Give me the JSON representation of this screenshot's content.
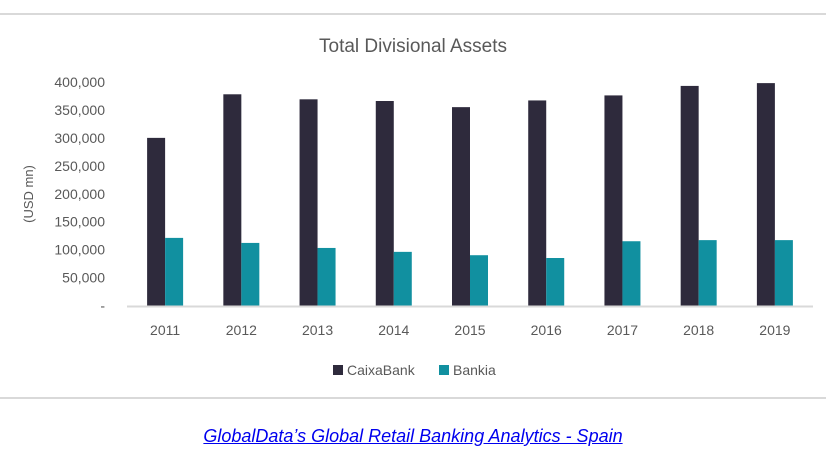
{
  "chart_data": {
    "type": "bar",
    "title": "Total Divisional Assets",
    "xlabel": "",
    "ylabel": "(USD mn)",
    "ylim": [
      0,
      400000
    ],
    "yticks": [
      0,
      50000,
      100000,
      150000,
      200000,
      250000,
      300000,
      350000,
      400000
    ],
    "ytick_labels": [
      "-",
      "50,000",
      "100,000",
      "150,000",
      "200,000",
      "250,000",
      "300,000",
      "350,000",
      "400,000"
    ],
    "categories": [
      "2011",
      "2012",
      "2013",
      "2014",
      "2015",
      "2016",
      "2017",
      "2018",
      "2019"
    ],
    "series": [
      {
        "name": "CaixaBank",
        "color": "#2e2a3c",
        "values": [
          300000,
          378000,
          369000,
          366000,
          355000,
          367000,
          376000,
          393000,
          398000
        ]
      },
      {
        "name": "Bankia",
        "color": "#1190a0",
        "values": [
          121000,
          112000,
          103000,
          96000,
          90000,
          85000,
          115000,
          117000,
          117000
        ]
      }
    ],
    "grid": false,
    "legend": "bottom"
  },
  "footer": {
    "source_link": "GlobalData’s Global Retail Banking Analytics - Spain"
  }
}
